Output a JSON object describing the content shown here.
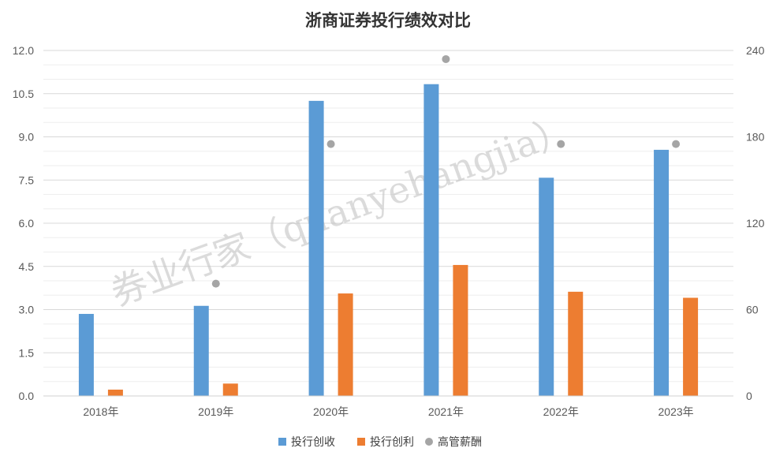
{
  "chart_data": {
    "type": "bar",
    "title": "浙商证券投行绩效对比",
    "categories": [
      "2018年",
      "2019年",
      "2020年",
      "2021年",
      "2022年",
      "2023年"
    ],
    "series": [
      {
        "name": "投行创收",
        "kind": "bar",
        "axis": "left",
        "color": "#5b9bd5",
        "values": [
          2.85,
          3.13,
          10.25,
          10.83,
          7.58,
          8.55
        ]
      },
      {
        "name": "投行创利",
        "kind": "bar",
        "axis": "left",
        "color": "#ed7d31",
        "values": [
          0.22,
          0.43,
          3.56,
          4.55,
          3.62,
          3.41
        ]
      },
      {
        "name": "高管薪酬",
        "kind": "scatter",
        "axis": "right",
        "color": "#a5a5a5",
        "values": [
          null,
          78,
          175,
          234,
          175,
          175
        ]
      }
    ],
    "y_left": {
      "lim": [
        0,
        12
      ],
      "ticks": [
        "0.0",
        "1.5",
        "3.0",
        "4.5",
        "6.0",
        "7.5",
        "9.0",
        "10.5",
        "12.0"
      ]
    },
    "y_right": {
      "lim": [
        0,
        240
      ],
      "ticks": [
        "0",
        "60",
        "120",
        "180",
        "240"
      ]
    },
    "grid": true,
    "legend": "bottom",
    "watermark": "券业行家（quanyehangjia）"
  }
}
